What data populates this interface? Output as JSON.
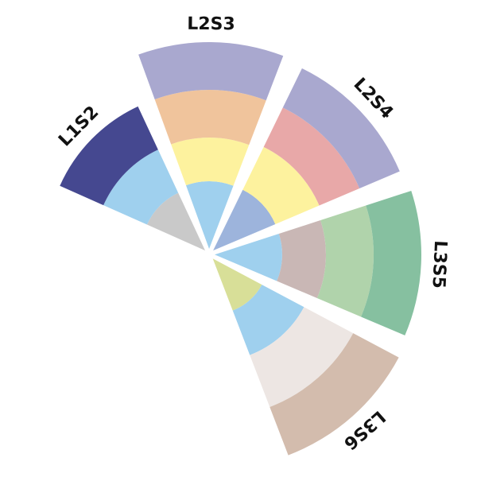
{
  "chart_data": {
    "type": "polar_stacked",
    "sectors": [
      {
        "name": "L1S2",
        "segments": [
          {
            "value": 80,
            "color": "#c9c9c9"
          },
          {
            "value": 60,
            "color": "#9fd0ee"
          },
          {
            "value": 60,
            "color": "#454890"
          }
        ]
      },
      {
        "name": "L2S3",
        "segments": [
          {
            "value": 85,
            "color": "#9fd0ee"
          },
          {
            "value": 55,
            "color": "#fdf29e"
          },
          {
            "value": 60,
            "color": "#f0c49c"
          },
          {
            "value": 60,
            "color": "#a9a8cf"
          }
        ]
      },
      {
        "name": "L2S4",
        "segments": [
          {
            "value": 85,
            "color": "#9db4dc"
          },
          {
            "value": 60,
            "color": "#fdf29e"
          },
          {
            "value": 55,
            "color": "#e8a8a8"
          },
          {
            "value": 55,
            "color": "#a9a8cf"
          }
        ]
      },
      {
        "name": "L3S5",
        "segments": [
          {
            "value": 85,
            "color": "#9fd0ee"
          },
          {
            "value": 55,
            "color": "#c9b7b5"
          },
          {
            "value": 60,
            "color": "#b0d3ab"
          },
          {
            "value": 60,
            "color": "#86c0a0"
          }
        ]
      },
      {
        "name": "L3S6",
        "segments": [
          {
            "value": 70,
            "color": "#d8df98"
          },
          {
            "value": 60,
            "color": "#9fd0ee"
          },
          {
            "value": 70,
            "color": "#ede6e3"
          },
          {
            "value": 65,
            "color": "#d3bcad"
          }
        ]
      }
    ]
  }
}
